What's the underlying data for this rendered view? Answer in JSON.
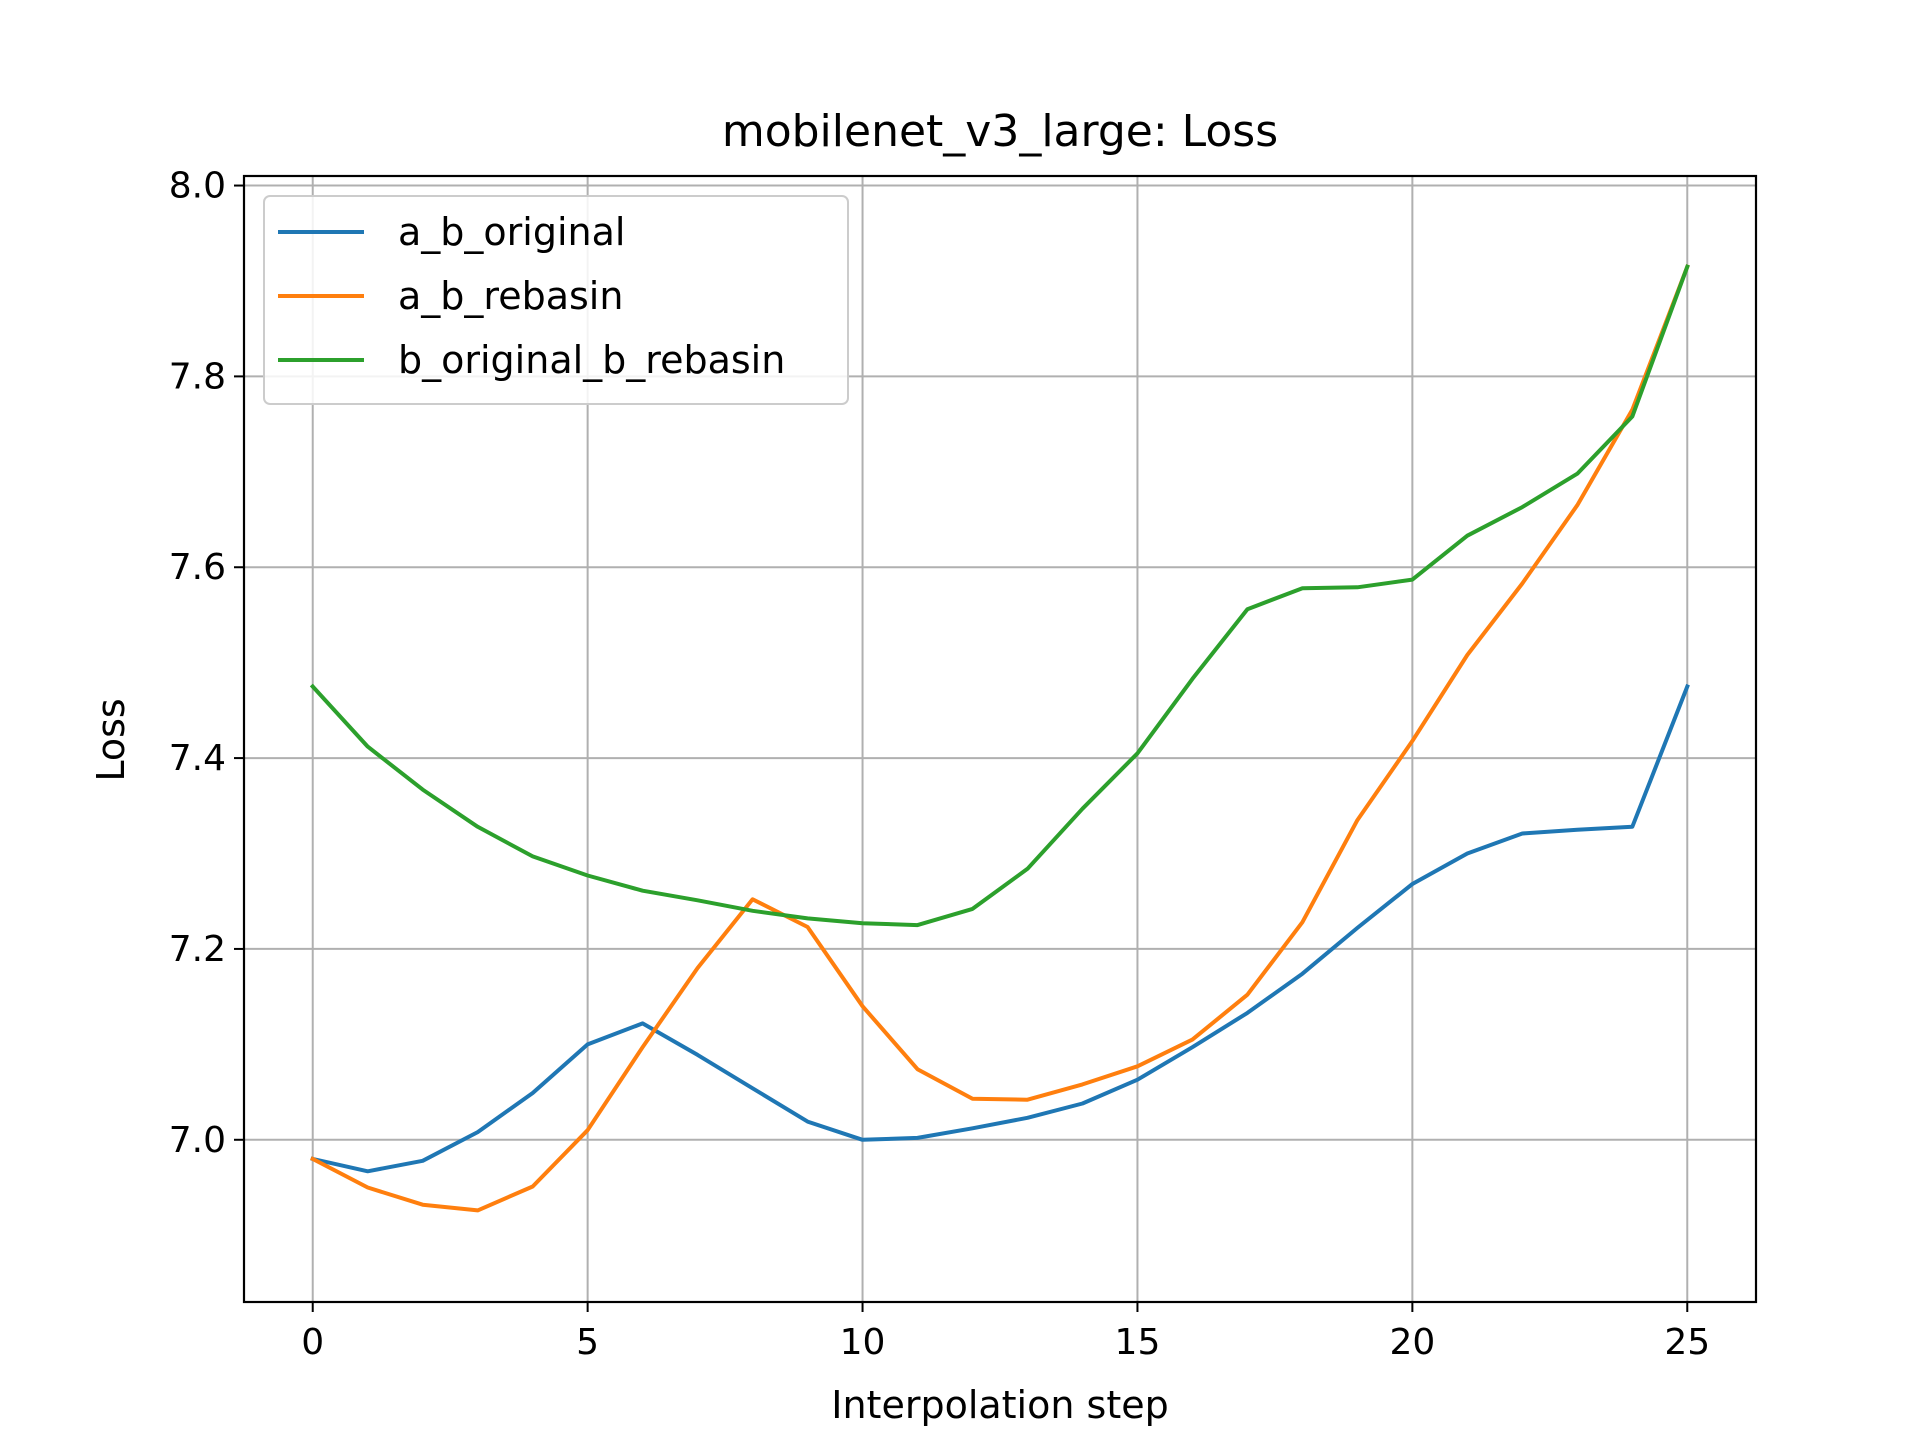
{
  "chart_data": {
    "type": "line",
    "title": "mobilenet_v3_large: Loss",
    "xlabel": "Interpolation step",
    "ylabel": "Loss",
    "xlim": [
      -1.25,
      26.25
    ],
    "ylim": [
      6.83,
      8.01
    ],
    "xticks": [
      0,
      5,
      10,
      15,
      20,
      25
    ],
    "xtick_labels": [
      "0",
      "5",
      "10",
      "15",
      "20",
      "25"
    ],
    "yticks": [
      7.0,
      7.2,
      7.4,
      7.6,
      7.8,
      8.0
    ],
    "ytick_labels": [
      "7.0",
      "7.2",
      "7.4",
      "7.6",
      "7.8",
      "8.0"
    ],
    "grid": true,
    "legend_position": "top-left",
    "x": [
      0,
      1,
      2,
      3,
      4,
      5,
      6,
      7,
      8,
      9,
      10,
      11,
      12,
      13,
      14,
      15,
      16,
      17,
      18,
      19,
      20,
      21,
      22,
      23,
      24,
      25
    ],
    "series": [
      {
        "name": "a_b_original",
        "color": "#1f77b4",
        "values": [
          6.98,
          6.967,
          6.978,
          7.008,
          7.049,
          7.1,
          7.122,
          7.089,
          7.054,
          7.019,
          7.0,
          7.002,
          7.012,
          7.023,
          7.038,
          7.063,
          7.097,
          7.133,
          7.174,
          7.222,
          7.268,
          7.3,
          7.321,
          7.325,
          7.328,
          7.475
        ]
      },
      {
        "name": "a_b_rebasin",
        "color": "#ff7f0e",
        "values": [
          6.98,
          6.95,
          6.932,
          6.926,
          6.951,
          7.01,
          7.097,
          7.18,
          7.252,
          7.223,
          7.14,
          7.074,
          7.043,
          7.042,
          7.058,
          7.077,
          7.105,
          7.152,
          7.228,
          7.335,
          7.418,
          7.508,
          7.583,
          7.665,
          7.765,
          7.915
        ]
      },
      {
        "name": "b_original_b_rebasin",
        "color": "#2ca02c",
        "values": [
          7.475,
          7.412,
          7.367,
          7.328,
          7.297,
          7.277,
          7.261,
          7.251,
          7.24,
          7.232,
          7.227,
          7.225,
          7.242,
          7.284,
          7.347,
          7.405,
          7.483,
          7.556,
          7.578,
          7.579,
          7.587,
          7.633,
          7.663,
          7.698,
          7.758,
          7.915
        ]
      }
    ]
  }
}
